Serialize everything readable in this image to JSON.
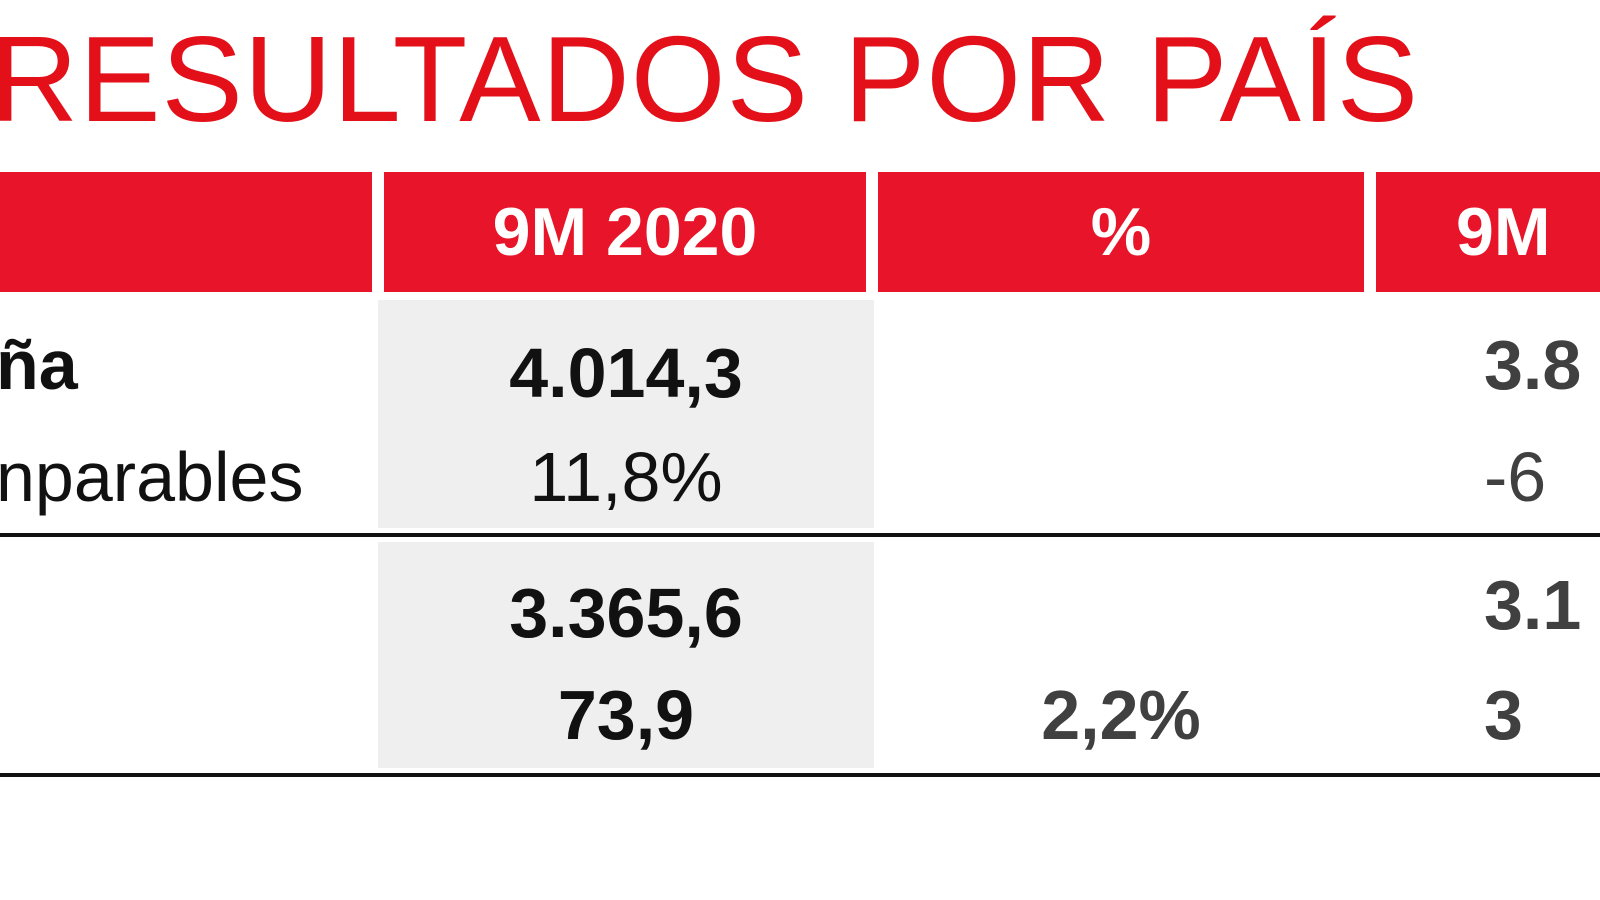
{
  "title": "RESULTADOS POR PAÍS",
  "table": {
    "headers": {
      "label": "",
      "col_9m2020": "9M 2020",
      "col_pct": "%",
      "col_9m2019": "9M"
    },
    "rows": [
      {
        "label": "ña",
        "v9m2020": "4.014,3",
        "pct": "",
        "v9m2019": "3.8"
      },
      {
        "label": "nparables",
        "v9m2020": "11,8%",
        "pct": "",
        "v9m2019": "-6"
      },
      {
        "label": "",
        "v9m2020": "3.365,6",
        "pct": "",
        "v9m2019": "3.1"
      },
      {
        "label": "",
        "v9m2020": "73,9",
        "pct": "2,2%",
        "v9m2019": "3"
      }
    ]
  },
  "colors": {
    "title": "#e3101a",
    "header_bg": "#e8152a",
    "header_text": "#ffffff",
    "highlight_column_bg": "#efefef",
    "rule": "#111111"
  }
}
